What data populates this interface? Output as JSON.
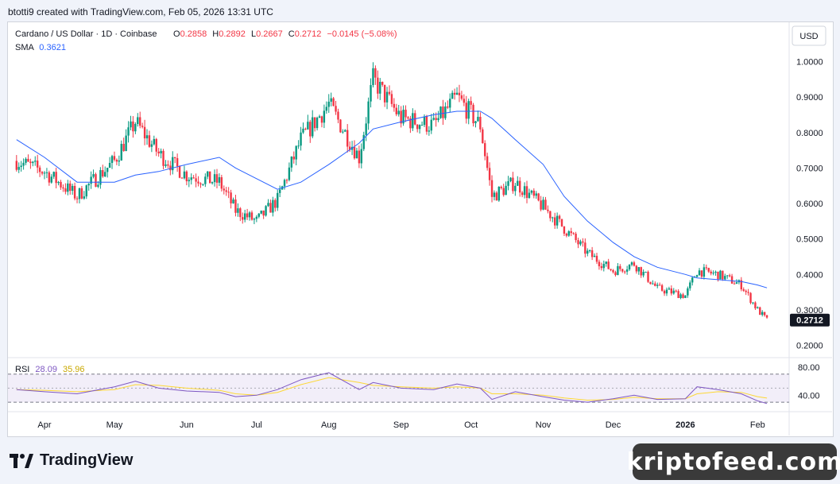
{
  "header": {
    "created_by": "btotti9 created with TradingView.com, Feb 05, 2026 13:31 UTC"
  },
  "legend": {
    "symbol": "Cardano / US Dollar · 1D · Coinbase",
    "open_label": "O",
    "open": "0.2858",
    "high_label": "H",
    "high": "0.2892",
    "low_label": "L",
    "low": "0.2667",
    "close_label": "C",
    "close": "0.2712",
    "change": "−0.0145 (−5.08%)",
    "sma_label": "SMA",
    "sma_value": "0.3621"
  },
  "price_axis": {
    "currency": "USD",
    "ticks": [
      "1.0000",
      "0.9000",
      "0.8000",
      "0.7000",
      "0.6000",
      "0.5000",
      "0.4000",
      "0.3000",
      "0.2000"
    ],
    "last_price": "0.2712"
  },
  "rsi": {
    "label": "RSI",
    "value": "28.09",
    "ma_value": "35.96",
    "ticks": [
      "80.00",
      "40.00"
    ]
  },
  "time_axis": {
    "labels": [
      "Apr",
      "May",
      "Jun",
      "Jul",
      "Aug",
      "Sep",
      "Oct",
      "Nov",
      "Dec",
      "2026",
      "Feb"
    ]
  },
  "footer": {
    "brand": "TradingView",
    "watermark": "kriptofeed.com"
  },
  "colors": {
    "up": "#089981",
    "down": "#f23645",
    "sma": "#2962ff",
    "rsi": "#7e57c2",
    "rsi_ma": "#fdd835",
    "bg": "#ffffff"
  },
  "chart_data": {
    "type": "candlestick",
    "title": "Cardano / US Dollar · 1D · Coinbase",
    "x": [
      "2025-03-20",
      "2025-04-01",
      "2025-04-15",
      "2025-05-01",
      "2025-05-10",
      "2025-05-20",
      "2025-06-01",
      "2025-06-15",
      "2025-06-22",
      "2025-07-01",
      "2025-07-10",
      "2025-07-20",
      "2025-08-01",
      "2025-08-14",
      "2025-08-20",
      "2025-09-01",
      "2025-09-15",
      "2025-09-25",
      "2025-10-05",
      "2025-10-10",
      "2025-10-20",
      "2025-11-01",
      "2025-11-10",
      "2025-11-20",
      "2025-12-01",
      "2025-12-10",
      "2025-12-20",
      "2026-01-01",
      "2026-01-06",
      "2026-01-15",
      "2026-01-25",
      "2026-02-01",
      "2026-02-05"
    ],
    "close": [
      0.72,
      0.69,
      0.62,
      0.72,
      0.83,
      0.74,
      0.68,
      0.66,
      0.58,
      0.55,
      0.61,
      0.78,
      0.88,
      0.73,
      0.95,
      0.84,
      0.82,
      0.9,
      0.82,
      0.62,
      0.66,
      0.59,
      0.53,
      0.46,
      0.41,
      0.43,
      0.36,
      0.34,
      0.41,
      0.4,
      0.37,
      0.3,
      0.2712
    ],
    "sma": [
      0.78,
      0.73,
      0.66,
      0.66,
      0.68,
      0.69,
      0.71,
      0.73,
      0.7,
      0.67,
      0.64,
      0.66,
      0.71,
      0.77,
      0.81,
      0.83,
      0.85,
      0.86,
      0.86,
      0.84,
      0.78,
      0.71,
      0.62,
      0.55,
      0.49,
      0.45,
      0.42,
      0.4,
      0.39,
      0.385,
      0.38,
      0.37,
      0.3621
    ],
    "rsi": [
      48,
      45,
      42,
      52,
      60,
      50,
      46,
      44,
      38,
      40,
      48,
      62,
      72,
      48,
      58,
      50,
      48,
      56,
      50,
      34,
      45,
      38,
      33,
      30,
      35,
      40,
      34,
      35,
      52,
      48,
      42,
      32,
      28.09
    ],
    "rsi_ma": [
      48,
      47,
      45,
      48,
      55,
      54,
      50,
      47,
      42,
      40,
      44,
      55,
      65,
      58,
      54,
      52,
      50,
      52,
      50,
      42,
      42,
      40,
      36,
      33,
      34,
      37,
      35,
      35,
      42,
      45,
      44,
      38,
      35.96
    ],
    "ylim": [
      0.2,
      1.0
    ],
    "rsi_ylim": [
      20,
      90
    ],
    "rsi_bands": [
      70,
      30
    ]
  }
}
